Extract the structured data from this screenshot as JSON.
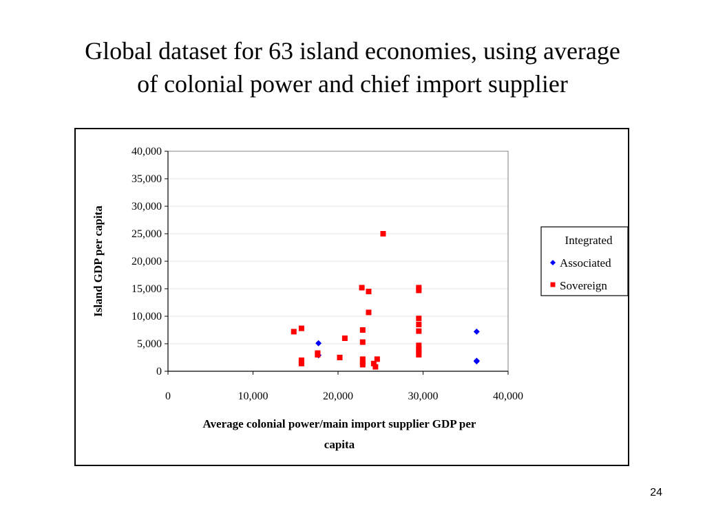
{
  "slide": {
    "title_line1": "Global dataset for 63 island economies, using average",
    "title_line2": "of colonial power and chief import supplier",
    "page_number": "24"
  },
  "chart_data": {
    "type": "scatter",
    "title": "",
    "xlabel_line1": "Average colonial power/main import supplier GDP per",
    "xlabel_line2": "capita",
    "ylabel": "Island GDP per capita",
    "xlim": [
      0,
      40000
    ],
    "ylim": [
      0,
      40000
    ],
    "xticks": [
      0,
      10000,
      20000,
      30000,
      40000
    ],
    "yticks": [
      0,
      5000,
      10000,
      15000,
      20000,
      25000,
      30000,
      35000,
      40000
    ],
    "xtick_labels": [
      "0",
      "10,000",
      "20,000",
      "30,000",
      "40,000"
    ],
    "ytick_labels": [
      "0",
      "5,000",
      "10,000",
      "15,000",
      "20,000",
      "25,000",
      "30,000",
      "35,000",
      "40,000"
    ],
    "grid": true,
    "legend": {
      "placement": "right",
      "title": "Integrated",
      "entries": [
        "Associated",
        "Sovereign"
      ]
    },
    "series": [
      {
        "name": "Associated",
        "marker": "diamond",
        "color": "#0000ff",
        "points": [
          {
            "x": 17700,
            "y": 5100
          },
          {
            "x": 17700,
            "y": 2900
          },
          {
            "x": 36300,
            "y": 7200
          },
          {
            "x": 36300,
            "y": 1900
          },
          {
            "x": 36300,
            "y": 1800
          }
        ]
      },
      {
        "name": "Sovereign",
        "marker": "square",
        "color": "#ff0000",
        "points": [
          {
            "x": 14800,
            "y": 7200
          },
          {
            "x": 15700,
            "y": 7800
          },
          {
            "x": 15700,
            "y": 2000
          },
          {
            "x": 15700,
            "y": 1700
          },
          {
            "x": 15700,
            "y": 1400
          },
          {
            "x": 17600,
            "y": 3300
          },
          {
            "x": 17600,
            "y": 3000
          },
          {
            "x": 20200,
            "y": 2500
          },
          {
            "x": 20800,
            "y": 6000
          },
          {
            "x": 22800,
            "y": 15200
          },
          {
            "x": 22900,
            "y": 7500
          },
          {
            "x": 22900,
            "y": 5300
          },
          {
            "x": 22900,
            "y": 2200
          },
          {
            "x": 22900,
            "y": 1700
          },
          {
            "x": 22900,
            "y": 1200
          },
          {
            "x": 23600,
            "y": 14500
          },
          {
            "x": 23600,
            "y": 10700
          },
          {
            "x": 24200,
            "y": 1400
          },
          {
            "x": 24400,
            "y": 800
          },
          {
            "x": 24600,
            "y": 2200
          },
          {
            "x": 25300,
            "y": 25000
          },
          {
            "x": 29500,
            "y": 15200
          },
          {
            "x": 29500,
            "y": 14700
          },
          {
            "x": 29500,
            "y": 9600
          },
          {
            "x": 29500,
            "y": 8500
          },
          {
            "x": 29500,
            "y": 7300
          },
          {
            "x": 29500,
            "y": 4700
          },
          {
            "x": 29500,
            "y": 4000
          },
          {
            "x": 29500,
            "y": 3500
          },
          {
            "x": 29500,
            "y": 3000
          }
        ]
      }
    ]
  }
}
